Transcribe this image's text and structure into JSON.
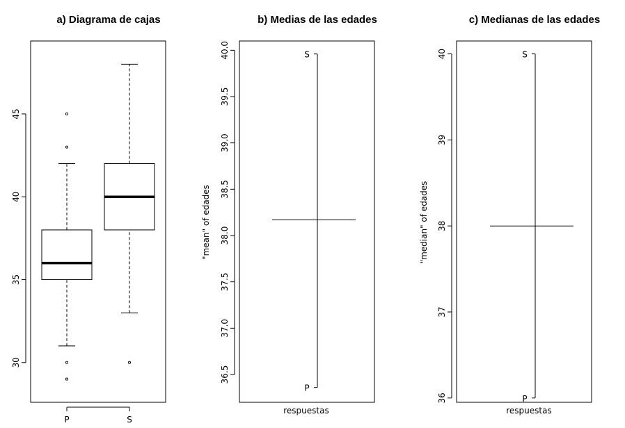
{
  "chart_data": [
    {
      "type": "box",
      "title": "a) Diagrama de cajas",
      "xlabel": "",
      "ylabel": "",
      "categories": [
        "P",
        "S"
      ],
      "ylim": [
        27.6,
        49.4
      ],
      "yticks": [
        30,
        35,
        40,
        45
      ],
      "boxes": [
        {
          "category": "P",
          "whisker_low": 31,
          "q1": 35,
          "median": 36,
          "q3": 38,
          "whisker_high": 42,
          "outliers": [
            29,
            30,
            43,
            45
          ]
        },
        {
          "category": "S",
          "whisker_low": 33,
          "q1": 38,
          "median": 40,
          "q3": 42,
          "whisker_high": 48,
          "outliers": [
            30
          ]
        }
      ]
    },
    {
      "type": "interaction",
      "title": "b) Medias de las edades",
      "xlabel": "respuestas",
      "ylabel": "\"mean\" of edades",
      "ylim": [
        36.2,
        40.1
      ],
      "yticks": [
        "36.5",
        "37.0",
        "37.5",
        "38.0",
        "38.5",
        "39.0",
        "39.5",
        "40.0"
      ],
      "points": [
        {
          "label": "S",
          "value": 39.96
        },
        {
          "label": "P",
          "value": 36.36
        }
      ],
      "overall": 38.17
    },
    {
      "type": "interaction",
      "title": "c) Medianas de las edades",
      "xlabel": "respuestas",
      "ylabel": "\"median\" of edades",
      "ylim": [
        35.95,
        40.15
      ],
      "yticks": [
        "36",
        "37",
        "38",
        "39",
        "40"
      ],
      "points": [
        {
          "label": "S",
          "value": 40
        },
        {
          "label": "P",
          "value": 36
        }
      ],
      "overall": 38
    }
  ]
}
